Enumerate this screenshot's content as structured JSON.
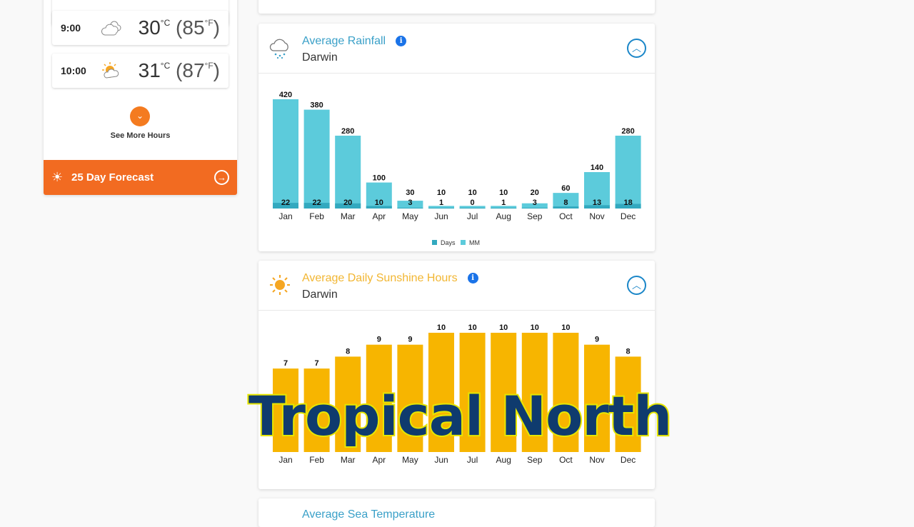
{
  "hourly": [
    {
      "time": "9:00",
      "icon": "cloudy-icon",
      "temp_c": "30",
      "temp_f": "85"
    },
    {
      "time": "10:00",
      "icon": "partly-sunny-icon",
      "temp_c": "31",
      "temp_f": "87"
    }
  ],
  "units": {
    "c": "°C",
    "f": "°F"
  },
  "see_more": "See More Hours",
  "forecast_button": "25 Day Forecast",
  "rainfall": {
    "title": "Average Rainfall",
    "location": "Darwin",
    "icon": "rain-cloud-icon",
    "title_color": "#3aa0c8",
    "chart_data": {
      "type": "bar",
      "categories": [
        "Jan",
        "Feb",
        "Mar",
        "Apr",
        "May",
        "Jun",
        "Jul",
        "Aug",
        "Sep",
        "Oct",
        "Nov",
        "Dec"
      ],
      "series": [
        {
          "name": "Days",
          "values": [
            22,
            22,
            20,
            10,
            3,
            1,
            0,
            1,
            3,
            8,
            13,
            18
          ],
          "color": "#33a9bf"
        },
        {
          "name": "MM",
          "values": [
            420,
            380,
            280,
            100,
            30,
            10,
            10,
            10,
            20,
            60,
            140,
            280
          ],
          "color": "#5ccbdb"
        }
      ],
      "legend": "bottom"
    }
  },
  "sunshine": {
    "title": "Average Daily Sunshine Hours",
    "location": "Darwin",
    "icon": "sun-icon",
    "title_color": "#f2b632",
    "chart_data": {
      "type": "bar",
      "categories": [
        "Jan",
        "Feb",
        "Mar",
        "Apr",
        "May",
        "Jun",
        "Jul",
        "Aug",
        "Sep",
        "Oct",
        "Nov",
        "Dec"
      ],
      "values": [
        7,
        7,
        8,
        9,
        9,
        10,
        10,
        10,
        10,
        10,
        9,
        8
      ],
      "color": "#f7b500"
    }
  },
  "sea_temp": {
    "title": "Average Sea Temperature"
  },
  "overlay_caption": "Tropical North"
}
